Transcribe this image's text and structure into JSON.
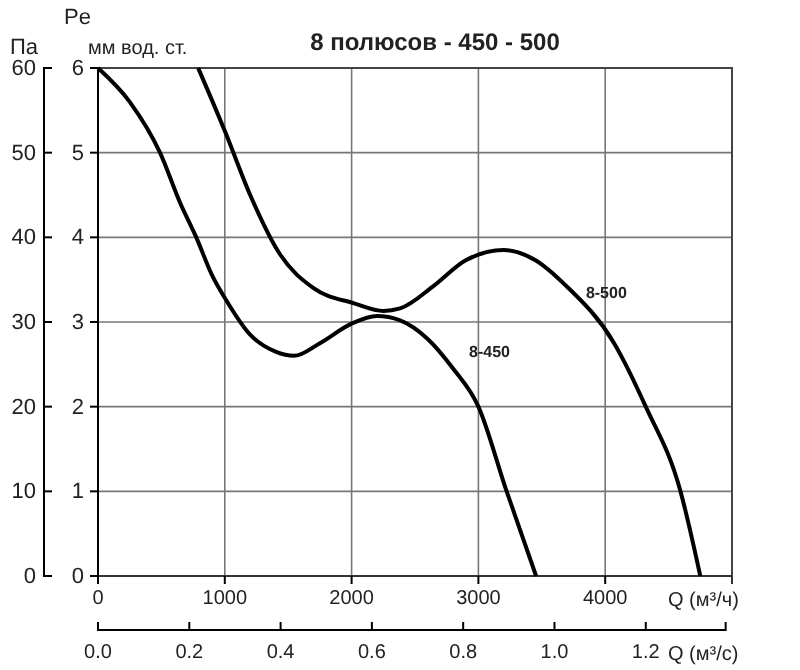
{
  "chart_data": {
    "type": "line",
    "title": "8 полюсов - 450 - 500",
    "xlabel": "Q (м³/ч)",
    "x2label": "Q (м³/с)",
    "ylabel": "Па",
    "y2label": "мм вод. ст.",
    "annotations": [
      "Pe"
    ],
    "xlim": [
      0,
      5000
    ],
    "xticks": [
      0,
      1000,
      2000,
      3000,
      4000
    ],
    "x2lim": [
      0,
      1.375
    ],
    "x2ticks": [
      {
        "value": 0,
        "label": "0.0"
      },
      {
        "value": 0.2,
        "label": "0.2"
      },
      {
        "value": 0.4,
        "label": "0.4"
      },
      {
        "value": 0.6,
        "label": "0.6"
      },
      {
        "value": 0.8,
        "label": "0.8"
      },
      {
        "value": 1,
        "label": "1.0"
      },
      {
        "value": 1.2,
        "label": "1.2"
      }
    ],
    "ylim": [
      0,
      60
    ],
    "yticks": [
      0,
      10,
      20,
      30,
      40,
      50,
      60
    ],
    "y2lim": [
      0,
      6
    ],
    "y2ticks": [
      0,
      1,
      2,
      3,
      4,
      5,
      6
    ],
    "grid": true,
    "marker": "none",
    "line_style": "solid",
    "series": [
      {
        "name": "8-450",
        "color": "#000000",
        "x": [
          0,
          250,
          489,
          650,
          775,
          900,
          1010,
          1200,
          1400,
          1545,
          1750,
          2000,
          2200,
          2382,
          2600,
          2800,
          3000,
          3218,
          3455
        ],
        "values": [
          60,
          56,
          50,
          44,
          40,
          35.5,
          32.6,
          28.5,
          26.5,
          26,
          27.5,
          29.8,
          30.7,
          30.2,
          28,
          24.5,
          20,
          10.2,
          0
        ]
      },
      {
        "name": "8-500",
        "color": "#000000",
        "x": [
          790,
          1010,
          1200,
          1435,
          1700,
          2020,
          2250,
          2382,
          2650,
          2900,
          3200,
          3450,
          3690,
          4070,
          4320,
          4590,
          4750
        ],
        "values": [
          60,
          52.2,
          45,
          38,
          34,
          32.2,
          31.3,
          31.6,
          34.3,
          37.3,
          38.5,
          37.3,
          34.3,
          27.5,
          20,
          10.2,
          0
        ]
      }
    ]
  }
}
